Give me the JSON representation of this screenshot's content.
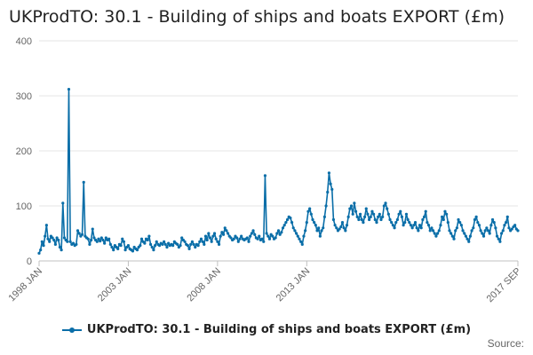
{
  "title": "UKProdTO: 30.1 - Building of ships and boats EXPORT (£m)",
  "source_label": "Source:",
  "colors": {
    "series": "#0a6ea8",
    "grid": "#e6e6e6",
    "text": "#666666"
  },
  "chart_data": {
    "type": "line",
    "title": "UKProdTO: 30.1 - Building of ships and boats EXPORT (£m)",
    "xlabel": "",
    "ylabel": "",
    "ylim": [
      0,
      400
    ],
    "yticks": [
      0,
      100,
      200,
      300,
      400
    ],
    "x_start": "1998 JAN",
    "x_end": "2017 SEP",
    "xtick_labels": [
      "1998 JAN",
      "2003 JAN",
      "2008 JAN",
      "2013 JAN",
      "2017 SEP"
    ],
    "grid": true,
    "legend_position": "bottom",
    "series": [
      {
        "name": "UKProdTO: 30.1 - Building of ships and boats EXPORT (£m)",
        "values": [
          14,
          20,
          35,
          28,
          45,
          65,
          40,
          35,
          45,
          42,
          38,
          30,
          42,
          38,
          25,
          20,
          105,
          42,
          38,
          35,
          312,
          35,
          30,
          32,
          28,
          30,
          55,
          50,
          45,
          48,
          143,
          45,
          42,
          40,
          30,
          38,
          58,
          42,
          38,
          35,
          40,
          36,
          42,
          38,
          32,
          42,
          38,
          40,
          30,
          25,
          20,
          28,
          25,
          22,
          30,
          28,
          40,
          35,
          20,
          25,
          28,
          22,
          20,
          18,
          25,
          22,
          20,
          25,
          28,
          40,
          35,
          32,
          40,
          38,
          45,
          30,
          25,
          20,
          28,
          35,
          30,
          28,
          32,
          30,
          35,
          30,
          25,
          32,
          28,
          30,
          28,
          35,
          32,
          30,
          25,
          28,
          42,
          38,
          35,
          30,
          28,
          22,
          30,
          35,
          30,
          25,
          30,
          28,
          35,
          40,
          35,
          30,
          45,
          38,
          50,
          42,
          35,
          45,
          50,
          40,
          35,
          30,
          45,
          52,
          48,
          60,
          55,
          50,
          45,
          42,
          38,
          40,
          45,
          42,
          35,
          40,
          45,
          40,
          38,
          40,
          42,
          35,
          45,
          50,
          55,
          48,
          42,
          40,
          45,
          38,
          40,
          35,
          155,
          50,
          45,
          40,
          48,
          45,
          40,
          42,
          50,
          55,
          48,
          52,
          60,
          65,
          70,
          75,
          80,
          78,
          70,
          60,
          55,
          50,
          45,
          40,
          35,
          30,
          45,
          55,
          70,
          90,
          95,
          85,
          75,
          70,
          65,
          55,
          60,
          45,
          55,
          60,
          80,
          100,
          125,
          160,
          140,
          130,
          75,
          65,
          60,
          55,
          58,
          62,
          70,
          60,
          55,
          65,
          80,
          95,
          100,
          85,
          105,
          90,
          80,
          75,
          85,
          75,
          70,
          80,
          95,
          85,
          75,
          80,
          90,
          85,
          75,
          70,
          80,
          85,
          75,
          80,
          100,
          105,
          95,
          85,
          75,
          70,
          65,
          60,
          70,
          75,
          85,
          90,
          80,
          65,
          70,
          85,
          75,
          70,
          65,
          60,
          65,
          70,
          60,
          55,
          65,
          60,
          75,
          80,
          90,
          70,
          65,
          55,
          60,
          55,
          50,
          45,
          50,
          55,
          65,
          80,
          75,
          90,
          85,
          70,
          55,
          50,
          45,
          40,
          55,
          60,
          75,
          70,
          65,
          55,
          50,
          45,
          40,
          35,
          45,
          55,
          60,
          75,
          80,
          70,
          65,
          55,
          50,
          45,
          55,
          60,
          55,
          50,
          65,
          75,
          70,
          60,
          45,
          40,
          35,
          50,
          55,
          65,
          70,
          80,
          60,
          55,
          58,
          62,
          65,
          58,
          55
        ]
      }
    ]
  }
}
